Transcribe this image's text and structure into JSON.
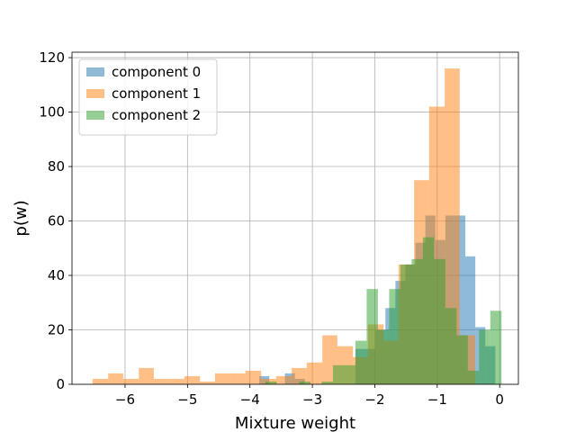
{
  "chart_data": {
    "type": "histogram",
    "xlabel": "Mixture weight",
    "ylabel": "p(w)",
    "xlim": [
      -6.85,
      0.3
    ],
    "ylim": [
      0,
      122
    ],
    "xticks": [
      -6,
      -5,
      -4,
      -3,
      -2,
      -1,
      0
    ],
    "xtick_labels": [
      "−6",
      "−5",
      "−4",
      "−3",
      "−2",
      "−1",
      "0"
    ],
    "yticks": [
      0,
      20,
      40,
      60,
      80,
      100,
      120
    ],
    "ytick_labels": [
      "0",
      "20",
      "40",
      "60",
      "80",
      "100",
      "120"
    ],
    "grid": true,
    "legend_position": "top-left",
    "series": [
      {
        "name": "component 0",
        "color": "#1f77b4",
        "opacity": 0.5,
        "bins": [
          [
            -3.85,
            -3.69,
            3
          ],
          [
            -3.44,
            -3.28,
            4
          ],
          [
            -3.28,
            -3.12,
            2
          ],
          [
            -2.31,
            -2.15,
            13
          ],
          [
            -2.15,
            -1.99,
            13
          ],
          [
            -1.99,
            -1.83,
            20
          ],
          [
            -1.83,
            -1.67,
            28
          ],
          [
            -1.67,
            -1.51,
            38
          ],
          [
            -1.51,
            -1.35,
            44
          ],
          [
            -1.35,
            -1.19,
            52
          ],
          [
            -1.19,
            -1.03,
            62
          ],
          [
            -1.03,
            -0.87,
            53
          ],
          [
            -0.87,
            -0.71,
            62
          ],
          [
            -0.71,
            -0.55,
            62
          ],
          [
            -0.55,
            -0.39,
            47
          ],
          [
            -0.39,
            -0.23,
            21
          ],
          [
            -0.23,
            -0.07,
            14
          ]
        ]
      },
      {
        "name": "component 1",
        "color": "#ff7f0e",
        "opacity": 0.5,
        "bins": [
          [
            -6.52,
            -6.27,
            2
          ],
          [
            -6.27,
            -6.03,
            4
          ],
          [
            -6.03,
            -5.78,
            2
          ],
          [
            -5.78,
            -5.54,
            6
          ],
          [
            -5.54,
            -5.29,
            2
          ],
          [
            -5.29,
            -5.05,
            2
          ],
          [
            -5.05,
            -4.8,
            3
          ],
          [
            -4.8,
            -4.56,
            1
          ],
          [
            -4.56,
            -4.31,
            4
          ],
          [
            -4.31,
            -4.07,
            4
          ],
          [
            -4.07,
            -3.82,
            5
          ],
          [
            -3.82,
            -3.58,
            2
          ],
          [
            -3.58,
            -3.33,
            3
          ],
          [
            -3.33,
            -3.09,
            6
          ],
          [
            -3.09,
            -2.84,
            8
          ],
          [
            -2.84,
            -2.6,
            18
          ],
          [
            -2.6,
            -2.35,
            14
          ],
          [
            -2.35,
            -2.11,
            10
          ],
          [
            -2.11,
            -1.86,
            22
          ],
          [
            -1.86,
            -1.62,
            16
          ],
          [
            -1.62,
            -1.37,
            44
          ],
          [
            -1.37,
            -1.13,
            75
          ],
          [
            -1.13,
            -0.88,
            102
          ],
          [
            -0.88,
            -0.64,
            116
          ],
          [
            -0.64,
            -0.39,
            18
          ]
        ]
      },
      {
        "name": "component 2",
        "color": "#2ca02c",
        "opacity": 0.5,
        "bins": [
          [
            -3.75,
            -3.57,
            1
          ],
          [
            -3.21,
            -3.03,
            1
          ],
          [
            -2.85,
            -2.67,
            1
          ],
          [
            -2.67,
            -2.49,
            7
          ],
          [
            -2.49,
            -2.31,
            7
          ],
          [
            -2.31,
            -2.13,
            16
          ],
          [
            -2.13,
            -1.95,
            35
          ],
          [
            -1.95,
            -1.77,
            20
          ],
          [
            -1.77,
            -1.59,
            35
          ],
          [
            -1.59,
            -1.41,
            44
          ],
          [
            -1.41,
            -1.23,
            46
          ],
          [
            -1.23,
            -1.05,
            54
          ],
          [
            -1.05,
            -0.87,
            46
          ],
          [
            -0.87,
            -0.69,
            28
          ],
          [
            -0.69,
            -0.51,
            18
          ],
          [
            -0.51,
            -0.33,
            5
          ],
          [
            -0.33,
            -0.15,
            20
          ],
          [
            -0.15,
            0.03,
            27
          ]
        ]
      }
    ]
  }
}
